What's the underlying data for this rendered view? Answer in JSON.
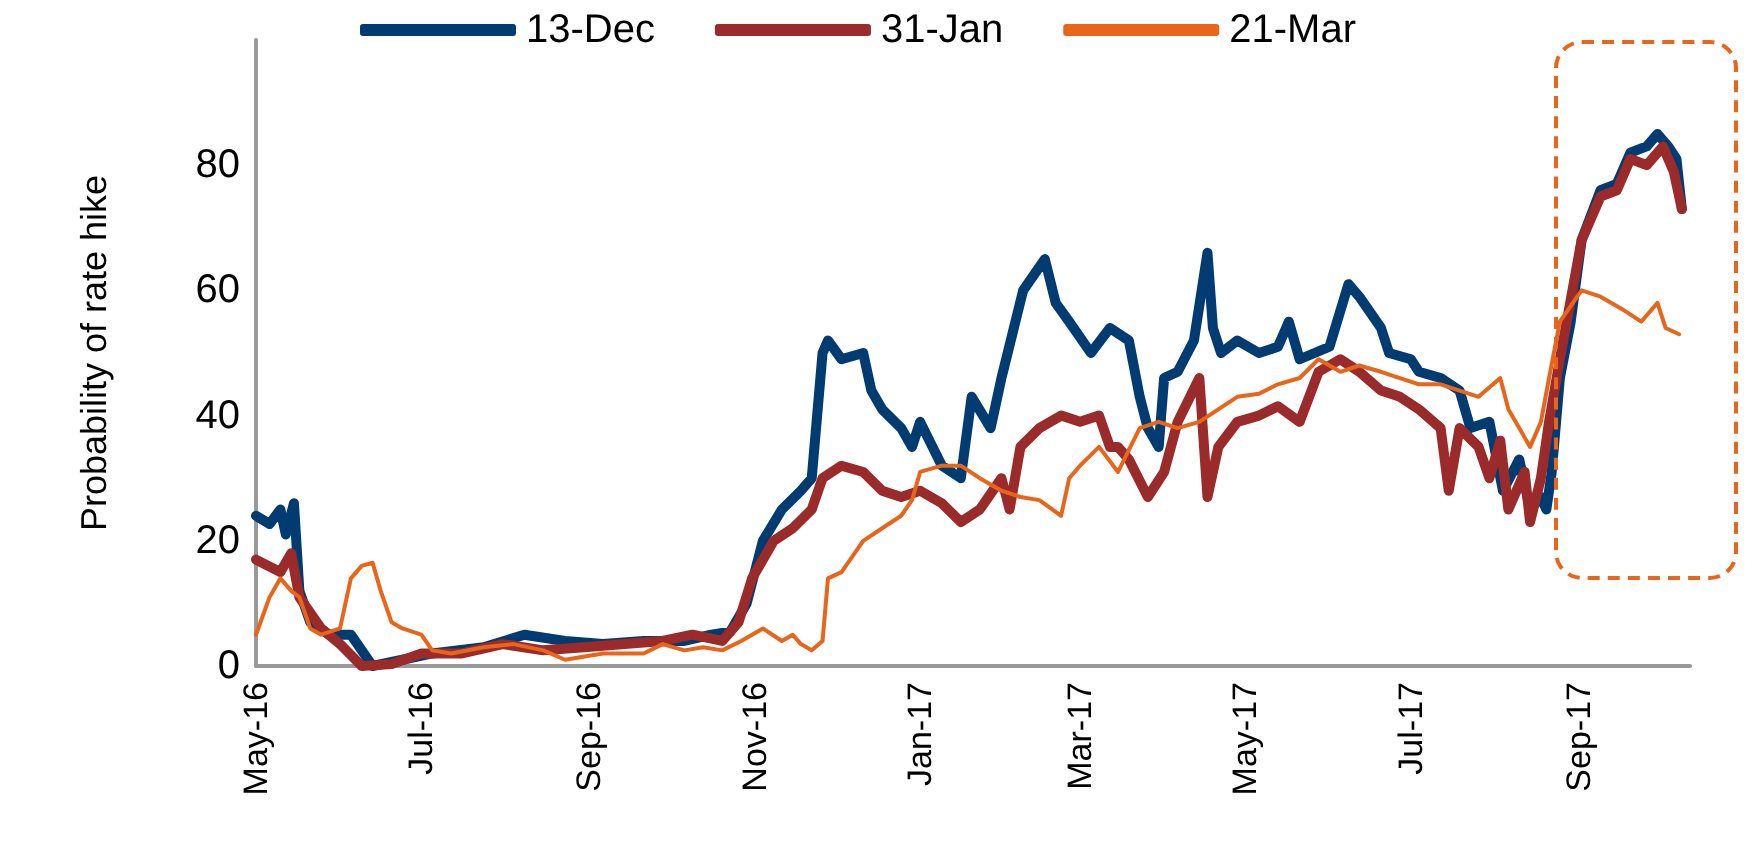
{
  "chart_data": {
    "type": "line",
    "ylabel": "Probability of rate hike",
    "xlim": [
      "2016-05-01",
      "2017-10-12"
    ],
    "xticks": [
      {
        "value": "2016-05-01",
        "label": "May-16"
      },
      {
        "value": "2016-07-01",
        "label": "Jul-16"
      },
      {
        "value": "2016-09-01",
        "label": "Sep-16"
      },
      {
        "value": "2016-11-01",
        "label": "Nov-16"
      },
      {
        "value": "2017-01-01",
        "label": "Jan-17"
      },
      {
        "value": "2017-03-01",
        "label": "Mar-17"
      },
      {
        "value": "2017-05-01",
        "label": "May-17"
      },
      {
        "value": "2017-07-01",
        "label": "Jul-17"
      },
      {
        "value": "2017-09-01",
        "label": "Sep-17"
      }
    ],
    "ylim": [
      0,
      100
    ],
    "yticks": [
      0,
      20,
      40,
      60,
      80
    ],
    "grid": false,
    "legend": "top",
    "marker": "none",
    "line_style": "solid",
    "series": [
      {
        "name": "13-Dec",
        "color": "#003c71",
        "x": [
          "2016-05-01",
          "2016-05-06",
          "2016-05-10",
          "2016-05-12",
          "2016-05-15",
          "2016-05-17",
          "2016-05-21",
          "2016-05-28",
          "2016-06-05",
          "2016-06-13",
          "2016-06-24",
          "2016-07-05",
          "2016-07-24",
          "2016-08-08",
          "2016-08-23",
          "2016-09-06",
          "2016-09-21",
          "2016-10-06",
          "2016-10-16",
          "2016-10-23",
          "2016-10-29",
          "2016-11-04",
          "2016-11-11",
          "2016-11-18",
          "2016-11-22",
          "2016-11-26",
          "2016-11-28",
          "2016-12-03",
          "2016-12-11",
          "2016-12-14",
          "2016-12-18",
          "2016-12-25",
          "2016-12-29",
          "2017-01-01",
          "2017-01-09",
          "2017-01-16",
          "2017-01-20",
          "2017-01-27",
          "2017-01-31",
          "2017-02-08",
          "2017-02-16",
          "2017-02-20",
          "2017-02-25",
          "2017-03-05",
          "2017-03-12",
          "2017-03-19",
          "2017-03-23",
          "2017-03-26",
          "2017-03-30",
          "2017-04-01",
          "2017-04-06",
          "2017-04-12",
          "2017-04-17",
          "2017-04-19",
          "2017-04-22",
          "2017-04-28",
          "2017-05-06",
          "2017-05-13",
          "2017-05-17",
          "2017-05-21",
          "2017-06-01",
          "2017-06-08",
          "2017-06-12",
          "2017-06-20",
          "2017-06-23",
          "2017-07-01",
          "2017-07-04",
          "2017-07-12",
          "2017-07-19",
          "2017-07-23",
          "2017-07-30",
          "2017-08-04",
          "2017-08-10",
          "2017-08-14",
          "2017-08-18",
          "2017-08-20",
          "2017-08-22",
          "2017-08-25",
          "2017-08-29",
          "2017-09-02",
          "2017-09-09",
          "2017-09-15",
          "2017-09-20",
          "2017-09-26",
          "2017-09-30",
          "2017-10-04",
          "2017-10-07",
          "2017-10-09"
        ],
        "values": [
          24,
          22.7,
          25,
          21,
          26,
          12,
          7,
          5,
          5,
          0,
          1,
          2,
          3,
          5,
          4,
          3.5,
          4,
          4,
          5,
          5.5,
          10,
          20,
          25,
          28,
          30,
          50,
          52,
          49,
          50,
          44,
          41,
          38,
          35,
          39,
          32,
          30,
          43,
          38,
          46,
          60,
          65,
          58,
          55,
          50,
          54,
          52,
          43,
          38,
          35,
          46,
          47,
          52,
          66,
          54,
          50,
          52,
          50,
          51,
          55,
          49,
          51,
          61,
          59,
          54,
          50,
          49,
          47,
          46,
          44,
          38,
          39,
          28,
          33,
          25,
          27,
          25,
          31,
          46,
          55,
          68,
          76,
          77,
          82,
          83,
          85,
          83,
          81,
          73
        ]
      },
      {
        "name": "31-Jan",
        "color": "#9b2a2a",
        "x": [
          "2016-05-01",
          "2016-05-10",
          "2016-05-14",
          "2016-05-17",
          "2016-05-25",
          "2016-06-01",
          "2016-06-09",
          "2016-06-20",
          "2016-07-01",
          "2016-07-16",
          "2016-07-31",
          "2016-08-15",
          "2016-08-30",
          "2016-09-14",
          "2016-09-28",
          "2016-10-09",
          "2016-10-20",
          "2016-10-26",
          "2016-10-31",
          "2016-11-08",
          "2016-11-15",
          "2016-11-22",
          "2016-11-26",
          "2016-12-03",
          "2016-12-11",
          "2016-12-18",
          "2016-12-25",
          "2017-01-01",
          "2017-01-09",
          "2017-01-16",
          "2017-01-23",
          "2017-01-31",
          "2017-02-03",
          "2017-02-07",
          "2017-02-14",
          "2017-02-22",
          "2017-03-01",
          "2017-03-08",
          "2017-03-12",
          "2017-03-15",
          "2017-03-19",
          "2017-03-26",
          "2017-04-01",
          "2017-04-06",
          "2017-04-14",
          "2017-04-17",
          "2017-04-21",
          "2017-04-28",
          "2017-05-06",
          "2017-05-13",
          "2017-05-21",
          "2017-05-28",
          "2017-06-05",
          "2017-06-12",
          "2017-06-20",
          "2017-06-27",
          "2017-07-04",
          "2017-07-12",
          "2017-07-15",
          "2017-07-19",
          "2017-07-26",
          "2017-07-30",
          "2017-08-03",
          "2017-08-06",
          "2017-08-12",
          "2017-08-14",
          "2017-08-18",
          "2017-08-21",
          "2017-08-25",
          "2017-09-02",
          "2017-09-09",
          "2017-09-15",
          "2017-09-20",
          "2017-09-26",
          "2017-10-02",
          "2017-10-06",
          "2017-10-09"
        ],
        "values": [
          17,
          15,
          18,
          11,
          6,
          3.5,
          0,
          0.3,
          2,
          2,
          3.5,
          2.5,
          3,
          3.5,
          4,
          5,
          4,
          7,
          14,
          20,
          22,
          25,
          30,
          32,
          31,
          28,
          27,
          28,
          26,
          23,
          25,
          30,
          25,
          35,
          38,
          40,
          39,
          40,
          35,
          35,
          33,
          27,
          31,
          39,
          46,
          27,
          35,
          39,
          40,
          41.5,
          39,
          47,
          49,
          47,
          44,
          43,
          41,
          38,
          28,
          38,
          35,
          30,
          36,
          25,
          31,
          23,
          30,
          39,
          49,
          68,
          75,
          76,
          81,
          80,
          83,
          79,
          73
        ]
      },
      {
        "name": "21-Mar",
        "color": "#e8651a",
        "x": [
          "2016-05-01",
          "2016-05-06",
          "2016-05-10",
          "2016-05-14",
          "2016-05-17",
          "2016-05-21",
          "2016-05-25",
          "2016-06-01",
          "2016-06-05",
          "2016-06-09",
          "2016-06-13",
          "2016-06-16",
          "2016-06-20",
          "2016-06-24",
          "2016-07-01",
          "2016-07-05",
          "2016-07-12",
          "2016-07-24",
          "2016-08-04",
          "2016-08-15",
          "2016-08-23",
          "2016-09-06",
          "2016-09-21",
          "2016-09-28",
          "2016-10-06",
          "2016-10-13",
          "2016-10-20",
          "2016-10-27",
          "2016-11-04",
          "2016-11-11",
          "2016-11-15",
          "2016-11-18",
          "2016-11-22",
          "2016-11-26",
          "2016-11-28",
          "2016-12-03",
          "2016-12-11",
          "2016-12-18",
          "2016-12-25",
          "2016-12-29",
          "2017-01-01",
          "2017-01-09",
          "2017-01-16",
          "2017-01-23",
          "2017-01-31",
          "2017-02-07",
          "2017-02-14",
          "2017-02-22",
          "2017-02-25",
          "2017-03-01",
          "2017-03-08",
          "2017-03-15",
          "2017-03-23",
          "2017-03-30",
          "2017-04-06",
          "2017-04-14",
          "2017-04-21",
          "2017-04-28",
          "2017-05-06",
          "2017-05-13",
          "2017-05-21",
          "2017-05-28",
          "2017-06-05",
          "2017-06-12",
          "2017-06-20",
          "2017-06-27",
          "2017-07-04",
          "2017-07-12",
          "2017-07-19",
          "2017-07-26",
          "2017-08-03",
          "2017-08-06",
          "2017-08-10",
          "2017-08-14",
          "2017-08-18",
          "2017-08-21",
          "2017-08-25",
          "2017-09-02",
          "2017-09-09",
          "2017-09-17",
          "2017-09-24",
          "2017-09-30",
          "2017-10-03",
          "2017-10-08"
        ],
        "values": [
          5,
          11,
          14,
          12,
          11,
          6,
          5,
          6,
          14,
          16,
          16.5,
          12,
          7,
          6,
          5,
          2.5,
          2,
          3,
          3.5,
          2.5,
          1,
          2,
          2,
          3.5,
          2.5,
          3,
          2.5,
          4,
          6,
          4,
          5,
          3.5,
          2.5,
          4,
          14,
          15,
          20,
          22,
          24,
          26.5,
          31,
          32,
          32,
          30,
          28,
          27,
          26.5,
          24,
          30,
          32,
          35,
          31,
          38,
          39,
          38,
          39,
          41,
          43,
          43.5,
          45,
          46,
          49,
          47,
          48,
          47,
          46,
          45,
          45,
          44,
          43,
          46,
          41,
          38,
          35,
          39,
          46,
          55,
          60,
          59,
          57,
          55,
          58,
          54,
          53
        ]
      }
    ]
  }
}
